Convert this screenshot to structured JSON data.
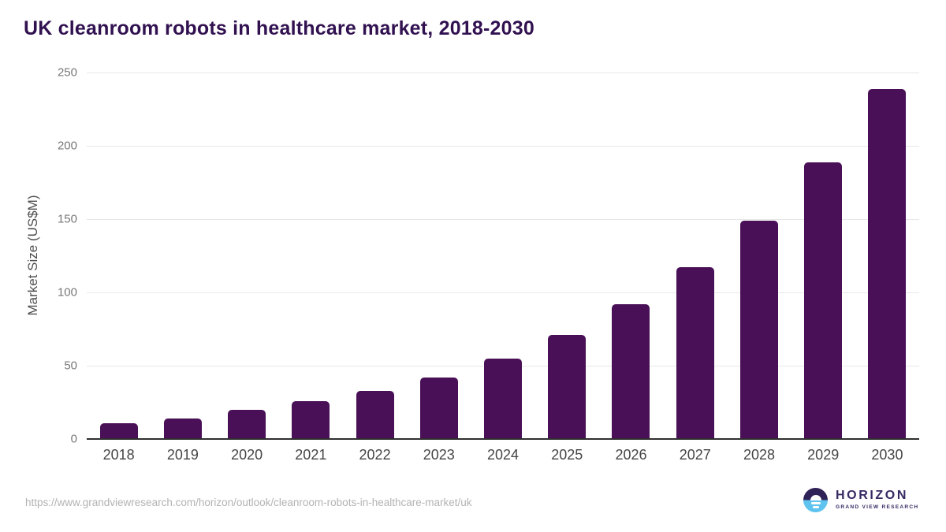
{
  "page": {
    "title": "UK cleanroom robots in healthcare market, 2018-2030"
  },
  "chart_data": {
    "type": "bar",
    "title": "UK cleanroom robots in healthcare market, 2018-2030",
    "categories": [
      "2018",
      "2019",
      "2020",
      "2021",
      "2022",
      "2023",
      "2024",
      "2025",
      "2026",
      "2027",
      "2028",
      "2029",
      "2030"
    ],
    "values": [
      11,
      14,
      20,
      26,
      33,
      42,
      55,
      71,
      92,
      117,
      149,
      189,
      239
    ],
    "xlabel": "",
    "ylabel": "Market Size (US$M)",
    "ylim": [
      0,
      250
    ],
    "yticks": [
      0,
      50,
      100,
      150,
      200,
      250
    ],
    "grid": "horizontal",
    "legend": "none"
  },
  "footer": {
    "source_url": "https://www.grandviewresearch.com/horizon/outlook/cleanroom-robots-in-healthcare-market/uk",
    "logo": {
      "brand": "HORIZON",
      "subbrand": "GRAND VIEW RESEARCH",
      "icon": "horizon-sunset-circle-icon"
    }
  },
  "colors": {
    "background": "#ffffff",
    "title": "#311150",
    "bar": "#4a1057",
    "gridline": "#e8e8e8",
    "axis_line": "#2f2f2f",
    "y_tick_label": "#777777",
    "x_tick_label": "#454545",
    "url_text": "#b3b3b3",
    "logo_top": "#2f2256",
    "logo_bottom": "#5ec3ee",
    "logo_text": "#372a63"
  }
}
